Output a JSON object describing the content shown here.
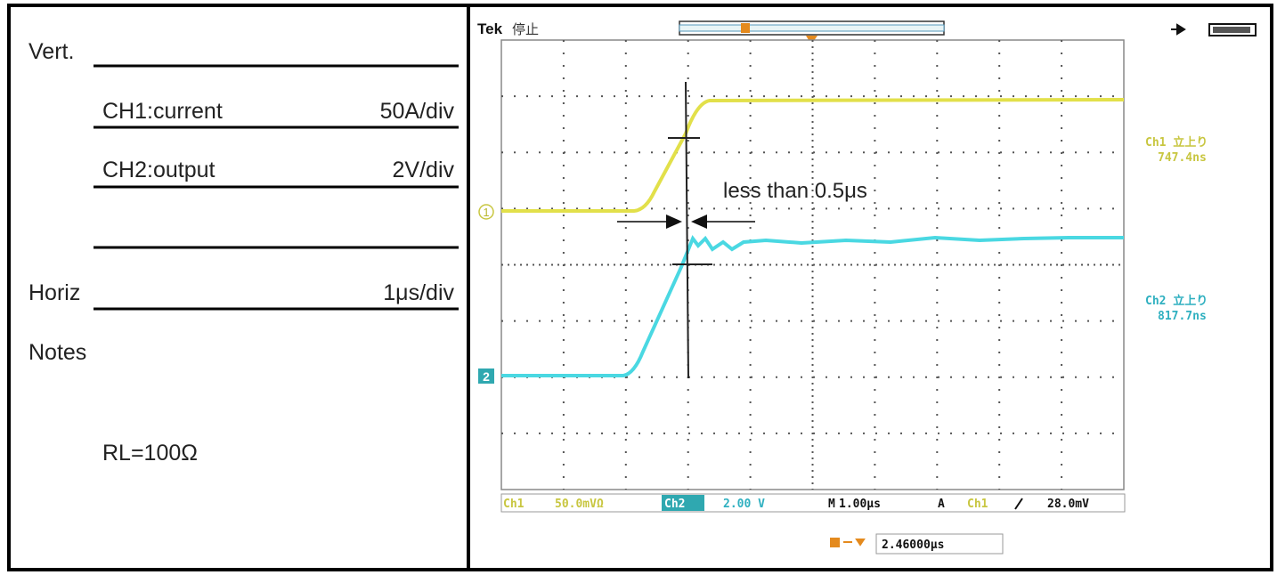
{
  "notes_panel": {
    "vert_label": "Vert.",
    "rows": [
      {
        "label": "CH1:current",
        "scale": "50A/div"
      },
      {
        "label": "CH2:output",
        "scale": "2V/div"
      }
    ],
    "horiz_label": "Horiz",
    "horiz_scale": "1μs/div",
    "notes_label": "Notes",
    "note": "RL=100Ω"
  },
  "scope": {
    "brand": "Tek",
    "status": "停止",
    "annotation": "less than 0.5μs",
    "ch1_marker": "1",
    "ch2_marker": "2",
    "readouts": [
      {
        "label": "Ch1 立上り",
        "value": "747.4ns"
      },
      {
        "label": "Ch2 立上り",
        "value": "817.7ns"
      }
    ],
    "status_bar": {
      "ch1": "Ch1",
      "ch1_scale": "50.0mVΩ",
      "ch2": "Ch2",
      "ch2_scale": "2.00 V",
      "timebase_label": "M",
      "timebase": "1.00μs",
      "trigger_label": "A",
      "trigger_source": "Ch1",
      "trigger_level": "28.0mV"
    },
    "trigger_position": "2.46000μs"
  }
}
